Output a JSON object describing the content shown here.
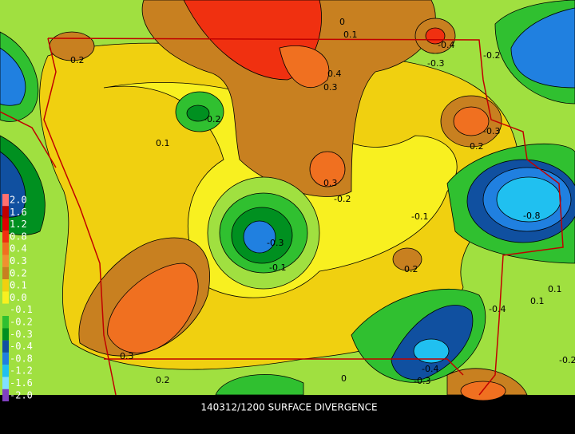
{
  "caption": "140312/1200 SURFACE DIVERGENCE",
  "legend": [
    {
      "label": "2.0",
      "color": "#ff7070"
    },
    {
      "label": "1.6",
      "color": "#c00000"
    },
    {
      "label": "1.2",
      "color": "#e00000"
    },
    {
      "label": "0.8",
      "color": "#f03010"
    },
    {
      "label": "0.4",
      "color": "#f07020"
    },
    {
      "label": "0.3",
      "color": "#f09030"
    },
    {
      "label": "0.2",
      "color": "#c88020"
    },
    {
      "label": "0.1",
      "color": "#f0d010"
    },
    {
      "label": "0.0",
      "color": "#f8f020"
    },
    {
      "label": "-0.1",
      "color": "#a0e040"
    },
    {
      "label": "-0.2",
      "color": "#30c030"
    },
    {
      "label": "-0.3",
      "color": "#009020"
    },
    {
      "label": "-0.4",
      "color": "#1050a0"
    },
    {
      "label": "-0.8",
      "color": "#2080e0"
    },
    {
      "label": "-1.2",
      "color": "#20c0f0"
    },
    {
      "label": "-1.6",
      "color": "#80e0ff"
    },
    {
      "label": "-2.0",
      "color": "#8040c0"
    }
  ],
  "contour_labels": [
    "0.2",
    "0.1",
    "0",
    "-0.2",
    "0.4",
    "0.3",
    "-0.4",
    "-0.3",
    "-0.2",
    "-0.1",
    "0.1",
    "-0.3",
    "0.3",
    "0.2",
    "-0.2",
    "-0.3",
    "-0.1",
    "-0.8",
    "-0.4",
    "0.1",
    "0.3",
    "0.2",
    "-0.4",
    "-0.3",
    "0.2",
    "-0.2",
    "0.1",
    "0"
  ]
}
